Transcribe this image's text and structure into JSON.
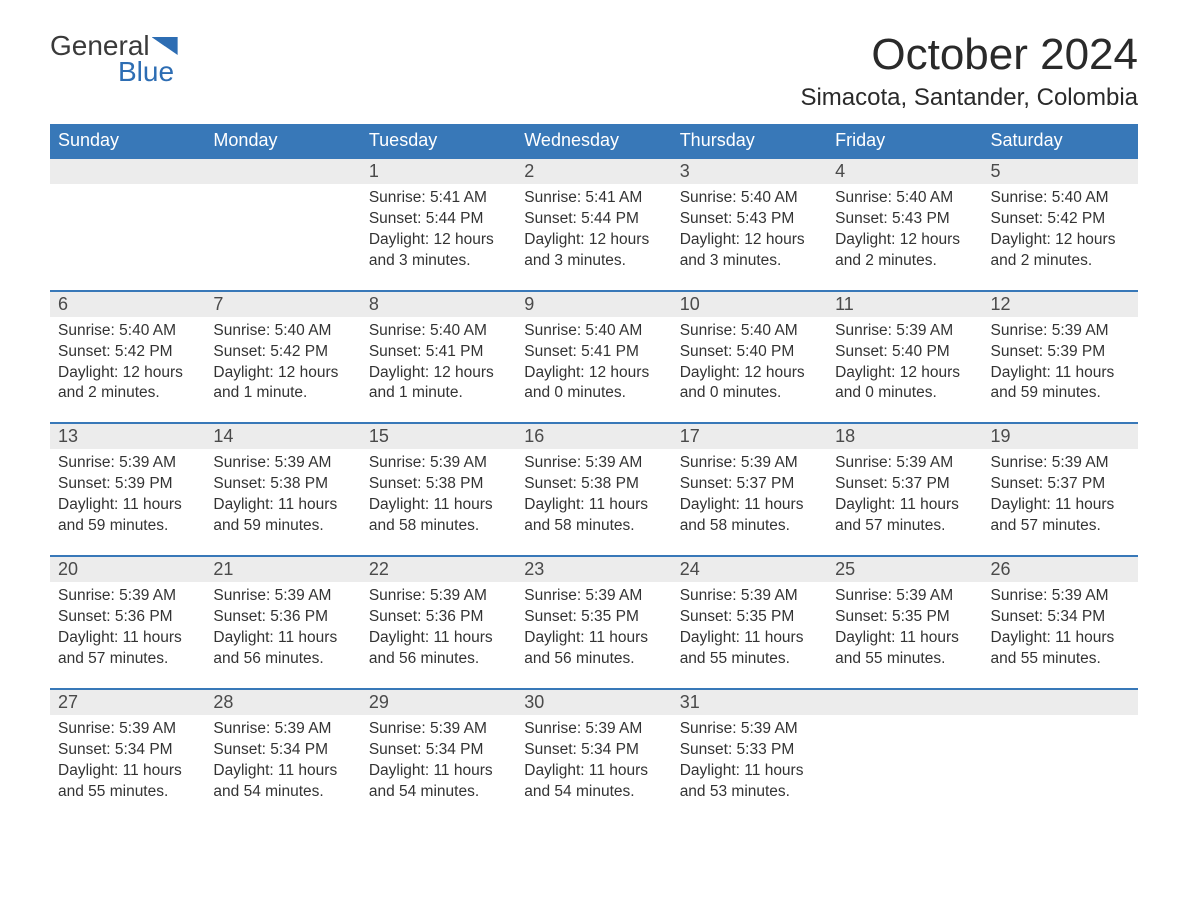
{
  "logo": {
    "text_top": "General",
    "text_bottom": "Blue"
  },
  "title": "October 2024",
  "location": "Simacota, Santander, Colombia",
  "colors": {
    "header_bg": "#3878b8",
    "header_text": "#ffffff",
    "daynum_bg": "#ececec",
    "text": "#333333",
    "row_border": "#3878b8",
    "page_bg": "#ffffff",
    "logo_accent": "#2d6db3"
  },
  "typography": {
    "title_fontsize": 44,
    "location_fontsize": 24,
    "dayhead_fontsize": 18,
    "daynum_fontsize": 18,
    "body_fontsize": 15.5
  },
  "day_headers": [
    "Sunday",
    "Monday",
    "Tuesday",
    "Wednesday",
    "Thursday",
    "Friday",
    "Saturday"
  ],
  "weeks": [
    [
      null,
      null,
      {
        "n": "1",
        "sunrise": "5:41 AM",
        "sunset": "5:44 PM",
        "daylight": "12 hours and 3 minutes."
      },
      {
        "n": "2",
        "sunrise": "5:41 AM",
        "sunset": "5:44 PM",
        "daylight": "12 hours and 3 minutes."
      },
      {
        "n": "3",
        "sunrise": "5:40 AM",
        "sunset": "5:43 PM",
        "daylight": "12 hours and 3 minutes."
      },
      {
        "n": "4",
        "sunrise": "5:40 AM",
        "sunset": "5:43 PM",
        "daylight": "12 hours and 2 minutes."
      },
      {
        "n": "5",
        "sunrise": "5:40 AM",
        "sunset": "5:42 PM",
        "daylight": "12 hours and 2 minutes."
      }
    ],
    [
      {
        "n": "6",
        "sunrise": "5:40 AM",
        "sunset": "5:42 PM",
        "daylight": "12 hours and 2 minutes."
      },
      {
        "n": "7",
        "sunrise": "5:40 AM",
        "sunset": "5:42 PM",
        "daylight": "12 hours and 1 minute."
      },
      {
        "n": "8",
        "sunrise": "5:40 AM",
        "sunset": "5:41 PM",
        "daylight": "12 hours and 1 minute."
      },
      {
        "n": "9",
        "sunrise": "5:40 AM",
        "sunset": "5:41 PM",
        "daylight": "12 hours and 0 minutes."
      },
      {
        "n": "10",
        "sunrise": "5:40 AM",
        "sunset": "5:40 PM",
        "daylight": "12 hours and 0 minutes."
      },
      {
        "n": "11",
        "sunrise": "5:39 AM",
        "sunset": "5:40 PM",
        "daylight": "12 hours and 0 minutes."
      },
      {
        "n": "12",
        "sunrise": "5:39 AM",
        "sunset": "5:39 PM",
        "daylight": "11 hours and 59 minutes."
      }
    ],
    [
      {
        "n": "13",
        "sunrise": "5:39 AM",
        "sunset": "5:39 PM",
        "daylight": "11 hours and 59 minutes."
      },
      {
        "n": "14",
        "sunrise": "5:39 AM",
        "sunset": "5:38 PM",
        "daylight": "11 hours and 59 minutes."
      },
      {
        "n": "15",
        "sunrise": "5:39 AM",
        "sunset": "5:38 PM",
        "daylight": "11 hours and 58 minutes."
      },
      {
        "n": "16",
        "sunrise": "5:39 AM",
        "sunset": "5:38 PM",
        "daylight": "11 hours and 58 minutes."
      },
      {
        "n": "17",
        "sunrise": "5:39 AM",
        "sunset": "5:37 PM",
        "daylight": "11 hours and 58 minutes."
      },
      {
        "n": "18",
        "sunrise": "5:39 AM",
        "sunset": "5:37 PM",
        "daylight": "11 hours and 57 minutes."
      },
      {
        "n": "19",
        "sunrise": "5:39 AM",
        "sunset": "5:37 PM",
        "daylight": "11 hours and 57 minutes."
      }
    ],
    [
      {
        "n": "20",
        "sunrise": "5:39 AM",
        "sunset": "5:36 PM",
        "daylight": "11 hours and 57 minutes."
      },
      {
        "n": "21",
        "sunrise": "5:39 AM",
        "sunset": "5:36 PM",
        "daylight": "11 hours and 56 minutes."
      },
      {
        "n": "22",
        "sunrise": "5:39 AM",
        "sunset": "5:36 PM",
        "daylight": "11 hours and 56 minutes."
      },
      {
        "n": "23",
        "sunrise": "5:39 AM",
        "sunset": "5:35 PM",
        "daylight": "11 hours and 56 minutes."
      },
      {
        "n": "24",
        "sunrise": "5:39 AM",
        "sunset": "5:35 PM",
        "daylight": "11 hours and 55 minutes."
      },
      {
        "n": "25",
        "sunrise": "5:39 AM",
        "sunset": "5:35 PM",
        "daylight": "11 hours and 55 minutes."
      },
      {
        "n": "26",
        "sunrise": "5:39 AM",
        "sunset": "5:34 PM",
        "daylight": "11 hours and 55 minutes."
      }
    ],
    [
      {
        "n": "27",
        "sunrise": "5:39 AM",
        "sunset": "5:34 PM",
        "daylight": "11 hours and 55 minutes."
      },
      {
        "n": "28",
        "sunrise": "5:39 AM",
        "sunset": "5:34 PM",
        "daylight": "11 hours and 54 minutes."
      },
      {
        "n": "29",
        "sunrise": "5:39 AM",
        "sunset": "5:34 PM",
        "daylight": "11 hours and 54 minutes."
      },
      {
        "n": "30",
        "sunrise": "5:39 AM",
        "sunset": "5:34 PM",
        "daylight": "11 hours and 54 minutes."
      },
      {
        "n": "31",
        "sunrise": "5:39 AM",
        "sunset": "5:33 PM",
        "daylight": "11 hours and 53 minutes."
      },
      null,
      null
    ]
  ],
  "labels": {
    "sunrise": "Sunrise:",
    "sunset": "Sunset:",
    "daylight": "Daylight:"
  }
}
